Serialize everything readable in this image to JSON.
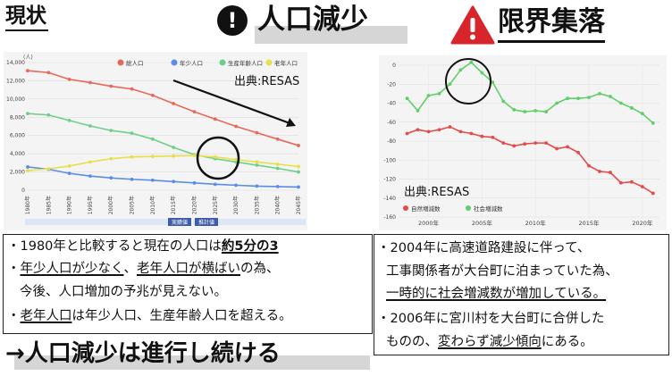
{
  "header": {
    "status_title": "現状",
    "population_decline_title": "人口減少",
    "exclamation_glyph": "!",
    "limit_village_title": "限界集落"
  },
  "left_chart": {
    "source": "出典:RESAS",
    "ylabel": "(人)",
    "legend": [
      "総人口",
      "年少人口",
      "生産年齢人口",
      "老年人口"
    ],
    "actual_label": "実績値",
    "projected_label": "推計値"
  },
  "right_chart": {
    "source": "出典:RESAS",
    "legend": [
      "自然増減数",
      "社会増減数"
    ]
  },
  "chart_data": [
    {
      "type": "line",
      "ylabel": "(人)",
      "ylim": [
        0,
        14000
      ],
      "yticks": [
        "0",
        "2,000",
        "4,000",
        "6,000",
        "8,000",
        "10,000",
        "12,000",
        "14,000"
      ],
      "categories": [
        "1980年",
        "1985年",
        "1990年",
        "1995年",
        "2000年",
        "2005年",
        "2010年",
        "2015年",
        "2020年",
        "2025年",
        "2030年",
        "2035年",
        "2040年",
        "2045年"
      ],
      "series": [
        {
          "name": "総人口",
          "color": "#e8685a",
          "values": [
            13100,
            12900,
            12150,
            11800,
            11400,
            11100,
            10400,
            9500,
            8600,
            7800,
            7000,
            6300,
            5600,
            4900
          ]
        },
        {
          "name": "年少人口",
          "color": "#5b8de8",
          "values": [
            2550,
            2300,
            1850,
            1550,
            1350,
            1200,
            1100,
            950,
            800,
            650,
            550,
            450,
            400,
            350
          ]
        },
        {
          "name": "生産年齢人口",
          "color": "#6fcf8a",
          "values": [
            8400,
            8250,
            7650,
            7050,
            6550,
            6250,
            5600,
            4700,
            3900,
            3450,
            3100,
            2750,
            2400,
            2000
          ]
        },
        {
          "name": "老年人口",
          "color": "#e8e04a",
          "values": [
            2150,
            2350,
            2650,
            3100,
            3450,
            3650,
            3700,
            3750,
            3800,
            3650,
            3350,
            3100,
            2850,
            2600
          ]
        }
      ]
    },
    {
      "type": "line",
      "ylim": [
        -160,
        0
      ],
      "yticks": [
        "-160",
        "-140",
        "-120",
        "-100",
        "-80",
        "-60",
        "-40",
        "-20",
        "0"
      ],
      "xticks": [
        "2000年",
        "2005年",
        "2010年",
        "2015年",
        "2020年"
      ],
      "x": [
        1998,
        1999,
        2000,
        2001,
        2002,
        2003,
        2004,
        2005,
        2006,
        2007,
        2008,
        2009,
        2010,
        2011,
        2012,
        2013,
        2014,
        2015,
        2016,
        2017,
        2018,
        2019,
        2020,
        2021
      ],
      "series": [
        {
          "name": "自然増減数",
          "color": "#e34b4b",
          "values": [
            -72,
            -68,
            -70,
            -68,
            -65,
            -70,
            -72,
            -75,
            -76,
            -82,
            -85,
            -83,
            -82,
            -82,
            -88,
            -86,
            -92,
            -106,
            -112,
            -113,
            -124,
            -123,
            -128,
            -135
          ]
        },
        {
          "name": "社会増減数",
          "color": "#5fcf6a",
          "values": [
            -35,
            -48,
            -32,
            -30,
            -20,
            -5,
            3,
            -8,
            -18,
            -38,
            -47,
            -49,
            -48,
            -49,
            -40,
            -35,
            -35,
            -34,
            -30,
            -33,
            -40,
            -45,
            -51,
            -61
          ]
        }
      ]
    }
  ],
  "left_box": {
    "l1a": "・1980年と比較すると現在の人口は",
    "l1b": "約5分の3",
    "l2a": "・",
    "l2b": "年少人口が少なく",
    "l2c": "、",
    "l2d": "老年人口が横ばい",
    "l2e": "の為、",
    "l3": "今後、人口増加の予兆が見えない。",
    "l4a": "・",
    "l4b": "老年人口",
    "l4c": "は年少人口、生産年齢人口を超える。"
  },
  "conclusion": "→人口減少は進行し続ける",
  "right_box": {
    "l1": "・2004年に高速道路建設に伴って、",
    "l2": "工事関係者が大台町に泊まっていた為、",
    "l3": "一時的に社会増減数が増加している。",
    "l4": "・2006年に宮川村を大台町に合併した",
    "l5a": "ものの、",
    "l5b": "変わらず減少傾向",
    "l5c": "にある。"
  }
}
